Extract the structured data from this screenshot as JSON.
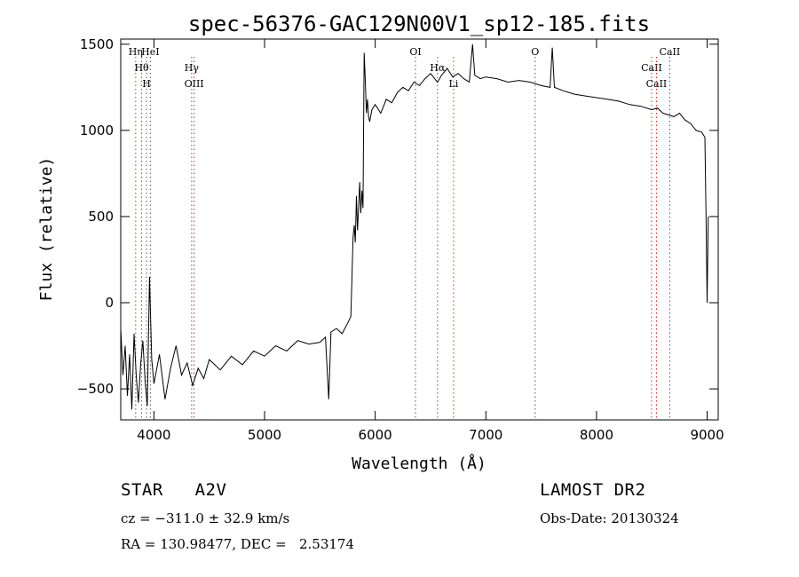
{
  "chart_data": {
    "type": "line",
    "title": "spec-56376-GAC129N00V1_sp12-185.fits",
    "xlabel": "Wavelength (Å)",
    "ylabel": "Flux (relative)",
    "xlim": [
      3700,
      9100
    ],
    "ylim": [
      -680,
      1530
    ],
    "xticks": [
      4000,
      5000,
      6000,
      7000,
      8000,
      9000
    ],
    "yticks": [
      -500,
      0,
      500,
      1000,
      1500
    ],
    "grid": false,
    "series": [
      {
        "x": [
          3700,
          3720,
          3740,
          3760,
          3780,
          3800,
          3820,
          3840,
          3860,
          3880,
          3900,
          3920,
          3940,
          3960,
          3980,
          4000,
          4050,
          4100,
          4150,
          4200,
          4250,
          4300,
          4350,
          4400,
          4450,
          4500,
          4600,
          4700,
          4800,
          4900,
          5000,
          5100,
          5200,
          5300,
          5400,
          5500,
          5550,
          5580,
          5600,
          5650,
          5700,
          5750,
          5780,
          5800,
          5810,
          5820,
          5830,
          5840,
          5850,
          5860,
          5870,
          5880,
          5890,
          5900,
          5910,
          5920,
          5930,
          5940,
          5950,
          5970,
          6000,
          6050,
          6100,
          6150,
          6200,
          6250,
          6300,
          6350,
          6400,
          6450,
          6500,
          6550,
          6563,
          6600,
          6650,
          6700,
          6750,
          6800,
          6850,
          6880,
          6900,
          6950,
          7000,
          7100,
          7200,
          7300,
          7400,
          7500,
          7580,
          7600,
          7620,
          7700,
          7800,
          7900,
          8000,
          8100,
          8200,
          8300,
          8400,
          8500,
          8550,
          8600,
          8650,
          8700,
          8750,
          8800,
          8850,
          8900,
          8950,
          8980,
          8990,
          9000,
          9010
        ],
        "y": [
          -150,
          -420,
          -250,
          -540,
          -300,
          -620,
          -180,
          -420,
          -580,
          -360,
          -220,
          -450,
          -600,
          150,
          -330,
          -470,
          -300,
          -560,
          -380,
          -250,
          -420,
          -350,
          -480,
          -380,
          -440,
          -330,
          -390,
          -310,
          -360,
          -280,
          -310,
          -250,
          -280,
          -220,
          -240,
          -230,
          -200,
          -560,
          -170,
          -150,
          -180,
          -120,
          -80,
          380,
          450,
          350,
          620,
          420,
          560,
          700,
          520,
          650,
          550,
          1450,
          1300,
          1100,
          1180,
          1080,
          1050,
          1120,
          1150,
          1100,
          1180,
          1160,
          1220,
          1250,
          1230,
          1280,
          1260,
          1300,
          1330,
          1290,
          1280,
          1320,
          1360,
          1310,
          1330,
          1300,
          1280,
          1500,
          1320,
          1300,
          1310,
          1300,
          1280,
          1290,
          1280,
          1260,
          1250,
          1480,
          1250,
          1230,
          1210,
          1200,
          1190,
          1180,
          1170,
          1150,
          1140,
          1120,
          1130,
          1100,
          1090,
          1080,
          1100,
          1060,
          1040,
          1000,
          990,
          960,
          500,
          0,
          500
        ]
      }
    ],
    "lines": [
      {
        "x": 3835,
        "label": "Hη",
        "color": "#d62828"
      },
      {
        "x": 3889,
        "label": "Hθ",
        "color": "#d62828"
      },
      {
        "x": 3933,
        "label": "H",
        "color": "#555555"
      },
      {
        "x": 3968,
        "label": "HeI",
        "color": "#555555"
      },
      {
        "x": 4341,
        "label": "Hγ",
        "color": "#d62828"
      },
      {
        "x": 4363,
        "label": "OIII",
        "color": "#555555"
      },
      {
        "x": 6364,
        "label": "OI",
        "color": "#555555"
      },
      {
        "x": 6563,
        "label": "Hα",
        "color": "#d62828"
      },
      {
        "x": 6708,
        "label": "Li",
        "color": "#d62828"
      },
      {
        "x": 7445,
        "label": "O",
        "color": "#555555"
      },
      {
        "x": 8498,
        "label": "CaII",
        "color": "#d62828"
      },
      {
        "x": 8542,
        "label": "CaII",
        "color": "#d62828"
      },
      {
        "x": 8662,
        "label": "CaII",
        "color": "#555555"
      }
    ]
  },
  "info": {
    "star_type": "STAR   A2V",
    "survey": "LAMOST DR2",
    "cz": "cz = −311.0 ± 32.9 km/s",
    "obs_date": "Obs-Date: 20130324",
    "radec": "RA = 130.98477, DEC =   2.53174"
  }
}
